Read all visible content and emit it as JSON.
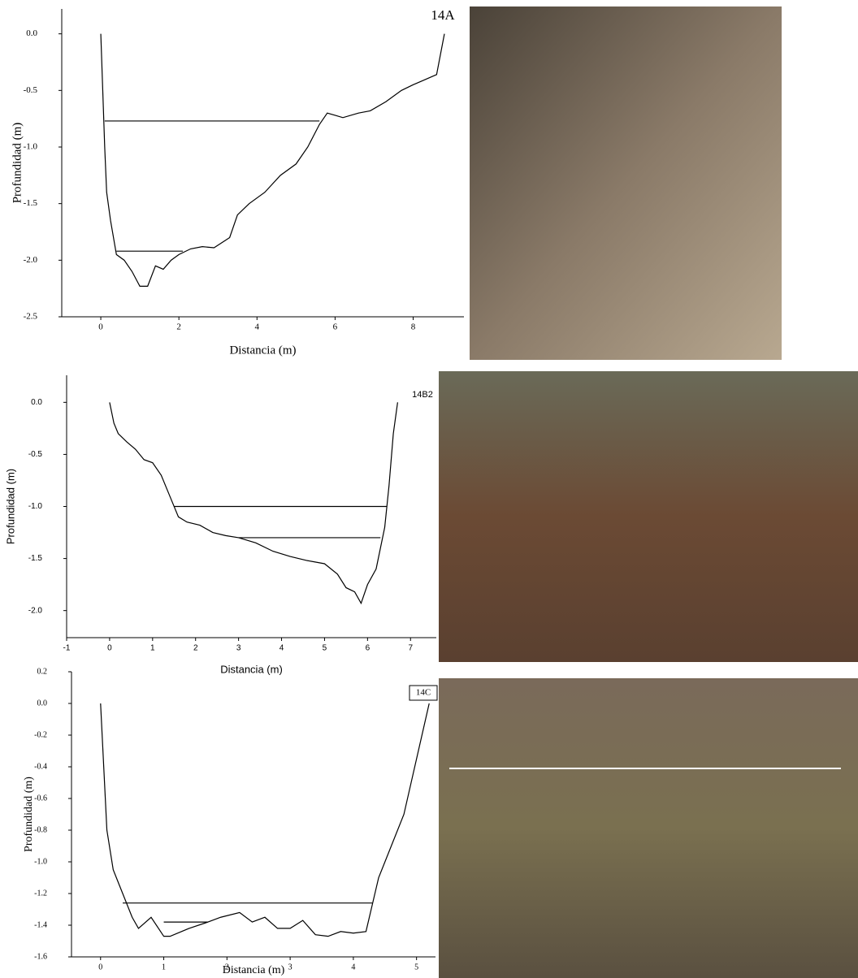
{
  "chart_data": [
    {
      "type": "line",
      "annotation": "14A",
      "xlabel": "Distancia (m)",
      "ylabel": "Profundidad (m)",
      "xlim": [
        -1,
        9.3
      ],
      "ylim": [
        -2.5,
        0.22
      ],
      "xticks": [
        0,
        2,
        4,
        6,
        8
      ],
      "yticks": [
        {
          "value": 0,
          "label": "0.0"
        },
        -0.5,
        {
          "value": -1,
          "label": "-1.0"
        },
        -1.5,
        {
          "value": -2,
          "label": "-2.0"
        },
        -2.5
      ],
      "series": [
        {
          "color": "#000000",
          "x": [
            0,
            0.05,
            0.1,
            0.15,
            0.25,
            0.4,
            0.6,
            0.8,
            1.0,
            1.2,
            1.4,
            1.6,
            1.8,
            2.0,
            2.3,
            2.6,
            2.9,
            3.3,
            3.5,
            3.8,
            4.2,
            4.6,
            5.0,
            5.3,
            5.6,
            5.8,
            6.0,
            6.2,
            6.6,
            6.9,
            7.3,
            7.7,
            8.0,
            8.2,
            8.6,
            8.8
          ],
          "values": [
            0,
            -0.5,
            -1.0,
            -1.4,
            -1.65,
            -1.95,
            -2.0,
            -2.1,
            -2.23,
            -2.23,
            -2.05,
            -2.08,
            -2.0,
            -1.95,
            -1.9,
            -1.88,
            -1.89,
            -1.8,
            -1.6,
            -1.5,
            -1.4,
            -1.25,
            -1.15,
            -1.0,
            -0.8,
            -0.7,
            -0.72,
            -0.74,
            -0.7,
            -0.68,
            -0.6,
            -0.5,
            -0.45,
            -0.42,
            -0.36,
            0
          ]
        },
        {
          "color": "#000000",
          "x": [
            0.1,
            5.6
          ],
          "values": [
            -0.77,
            -0.77
          ]
        },
        {
          "color": "#000000",
          "x": [
            0.4,
            2.1
          ],
          "values": [
            -1.92,
            -1.92
          ]
        }
      ]
    },
    {
      "type": "line",
      "annotation": "14B2",
      "xlabel": "Distancia (m)",
      "ylabel": "Profundidad (m)",
      "xlim": [
        -1,
        7.6
      ],
      "ylim": [
        -2.26,
        0.26
      ],
      "xticks": [
        -1,
        0,
        1,
        2,
        3,
        4,
        5,
        6,
        7
      ],
      "yticks": [
        {
          "value": 0,
          "label": "0.0"
        },
        -0.5,
        {
          "value": -1,
          "label": "-1.0"
        },
        -1.5,
        {
          "value": -2,
          "label": "-2.0"
        }
      ],
      "series": [
        {
          "color": "#000000",
          "x": [
            0,
            0.1,
            0.2,
            0.4,
            0.6,
            0.8,
            1.0,
            1.2,
            1.4,
            1.6,
            1.8,
            2.1,
            2.4,
            2.7,
            3.0,
            3.4,
            3.8,
            4.2,
            4.6,
            5.0,
            5.3,
            5.5,
            5.7,
            5.85,
            6.0,
            6.2,
            6.4,
            6.5,
            6.6,
            6.7
          ],
          "values": [
            0,
            -0.2,
            -0.3,
            -0.38,
            -0.45,
            -0.55,
            -0.58,
            -0.7,
            -0.9,
            -1.1,
            -1.15,
            -1.18,
            -1.25,
            -1.28,
            -1.3,
            -1.35,
            -1.43,
            -1.48,
            -1.52,
            -1.55,
            -1.65,
            -1.78,
            -1.82,
            -1.93,
            -1.75,
            -1.6,
            -1.2,
            -0.8,
            -0.3,
            0
          ]
        },
        {
          "color": "#000000",
          "x": [
            1.5,
            6.45
          ],
          "values": [
            -1.0,
            -1.0
          ]
        },
        {
          "color": "#000000",
          "x": [
            3.0,
            6.3
          ],
          "values": [
            -1.3,
            -1.3
          ]
        }
      ]
    },
    {
      "type": "line",
      "annotation": "14C",
      "xlabel": "Distancia (m)",
      "ylabel": "Profundidad (m)",
      "xlim": [
        -0.46,
        5.3
      ],
      "ylim": [
        -1.6,
        0.2
      ],
      "xticks": [
        0,
        1,
        2,
        3,
        4,
        5
      ],
      "yticks": [
        0.2,
        {
          "value": 0,
          "label": "0.0"
        },
        -0.2,
        -0.4,
        -0.6,
        -0.8,
        {
          "value": -1,
          "label": "-1.0"
        },
        -1.2,
        -1.4,
        -1.6
      ],
      "series": [
        {
          "color": "#000000",
          "x": [
            0,
            0.05,
            0.1,
            0.2,
            0.3,
            0.5,
            0.6,
            0.8,
            1.0,
            1.1,
            1.4,
            1.7,
            1.9,
            2.2,
            2.4,
            2.6,
            2.8,
            3.0,
            3.2,
            3.4,
            3.6,
            3.8,
            4.0,
            4.2,
            4.4,
            4.6,
            4.8,
            5.0,
            5.2
          ],
          "values": [
            0,
            -0.4,
            -0.8,
            -1.05,
            -1.15,
            -1.35,
            -1.42,
            -1.35,
            -1.47,
            -1.47,
            -1.42,
            -1.38,
            -1.35,
            -1.32,
            -1.38,
            -1.35,
            -1.42,
            -1.42,
            -1.37,
            -1.46,
            -1.47,
            -1.44,
            -1.45,
            -1.44,
            -1.1,
            -0.9,
            -0.7,
            -0.35,
            0
          ]
        },
        {
          "color": "#000000",
          "x": [
            0.35,
            4.3
          ],
          "values": [
            -1.26,
            -1.26
          ]
        },
        {
          "color": "#000000",
          "x": [
            1.0,
            1.7
          ],
          "values": [
            -1.38,
            -1.38
          ]
        }
      ]
    }
  ]
}
